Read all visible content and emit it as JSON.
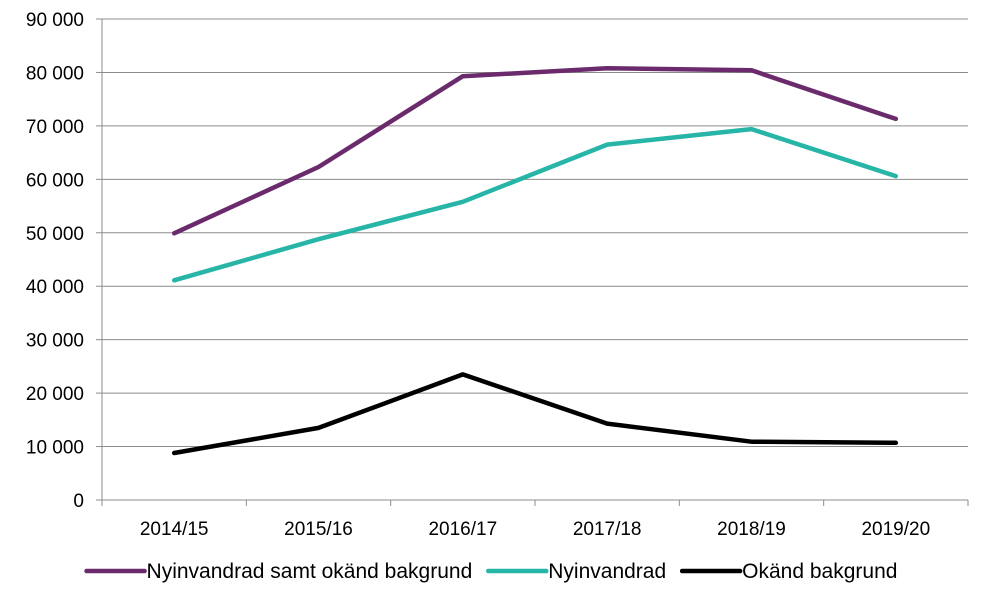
{
  "chart_data": {
    "type": "line",
    "title": "",
    "xlabel": "",
    "ylabel": "",
    "categories": [
      "2014/15",
      "2015/16",
      "2016/17",
      "2017/18",
      "2018/19",
      "2019/20"
    ],
    "ylim": [
      0,
      90000
    ],
    "ytick_labels": [
      "0",
      "10 000",
      "20 000",
      "30 000",
      "40 000",
      "50 000",
      "60 000",
      "70 000",
      "80 000",
      "90 000"
    ],
    "yticks": [
      0,
      10000,
      20000,
      30000,
      40000,
      50000,
      60000,
      70000,
      80000,
      90000
    ],
    "grid": true,
    "legend_position": "bottom",
    "series": [
      {
        "name": "Nyinvandrad samt okänd bakgrund",
        "color": "#6b2a6b",
        "values": [
          49900,
          62300,
          79300,
          80800,
          80400,
          71300
        ]
      },
      {
        "name": "Nyinvandrad",
        "color": "#26b5a6",
        "values": [
          41100,
          48800,
          55800,
          66500,
          69400,
          60600
        ]
      },
      {
        "name": "Okänd bakgrund",
        "color": "#000000",
        "values": [
          8800,
          13500,
          23500,
          14300,
          10900,
          10700
        ]
      }
    ]
  }
}
